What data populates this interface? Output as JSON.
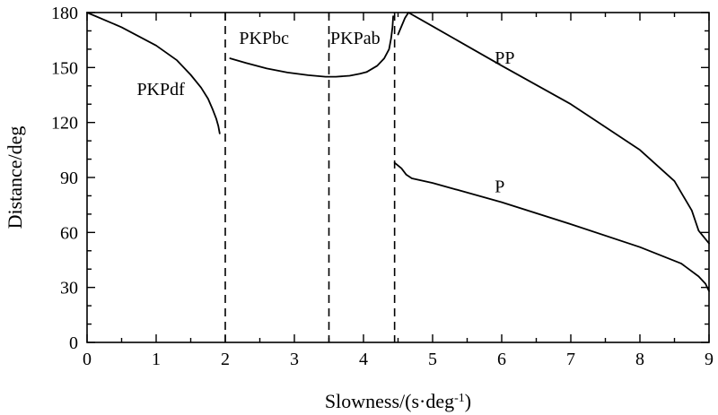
{
  "chart_data": {
    "type": "line",
    "title": "",
    "xlabel": "Slowness/(s·deg",
    "xlabel_sup": "-1",
    "xlabel_end": ")",
    "ylabel": "Distance/deg",
    "xlim": [
      0,
      9
    ],
    "ylim": [
      0,
      180
    ],
    "xticks": [
      "0",
      "1",
      "2",
      "3",
      "4",
      "5",
      "6",
      "7",
      "8",
      "9"
    ],
    "yticks": [
      "0",
      "30",
      "60",
      "90",
      "120",
      "150",
      "180"
    ],
    "grid": false,
    "dashed_lines_x": [
      2.0,
      3.5,
      4.45
    ],
    "series": [
      {
        "name": "PKPdf",
        "x": [
          0,
          0.5,
          1.0,
          1.3,
          1.5,
          1.65,
          1.75,
          1.82,
          1.87,
          1.9,
          1.92
        ],
        "y": [
          180,
          172,
          162,
          154,
          146,
          139,
          133,
          127,
          122,
          118,
          114
        ]
      },
      {
        "name": "PKPbc",
        "x": [
          2.07,
          2.3,
          2.6,
          2.9,
          3.2,
          3.45,
          3.6,
          3.8,
          3.95,
          4.05
        ],
        "y": [
          155,
          152.5,
          149.5,
          147.3,
          145.8,
          145,
          145,
          145.5,
          146.6,
          147.6
        ]
      },
      {
        "name": "PKPab",
        "x": [
          4.05,
          4.2,
          4.3,
          4.37,
          4.4,
          4.42,
          4.43
        ],
        "y": [
          147.6,
          151,
          155,
          160,
          166,
          172,
          178
        ]
      },
      {
        "name": "PP",
        "x": [
          4.5,
          4.6,
          4.65,
          5.0,
          6.0,
          7.0,
          8.0,
          8.5,
          8.75,
          8.85,
          9.0
        ],
        "y": [
          168,
          177,
          180,
          172.5,
          151,
          130,
          105,
          88,
          72,
          61,
          54
        ]
      },
      {
        "name": "P",
        "x": [
          4.45,
          4.55,
          4.62,
          4.7,
          5.0,
          6.0,
          7.0,
          8.0,
          8.6,
          8.85,
          8.95,
          9.0
        ],
        "y": [
          98,
          95,
          91.5,
          89.5,
          87,
          76.5,
          64.5,
          52,
          43,
          36,
          32,
          28
        ]
      }
    ],
    "annotations": [
      {
        "text": "PKPdf",
        "x": 0.72,
        "y": 135
      },
      {
        "text": "PKPbc",
        "x": 2.2,
        "y": 163
      },
      {
        "text": "PKPab",
        "x": 3.52,
        "y": 163
      },
      {
        "text": "PP",
        "x": 5.9,
        "y": 152
      },
      {
        "text": "P",
        "x": 5.9,
        "y": 82
      }
    ]
  }
}
